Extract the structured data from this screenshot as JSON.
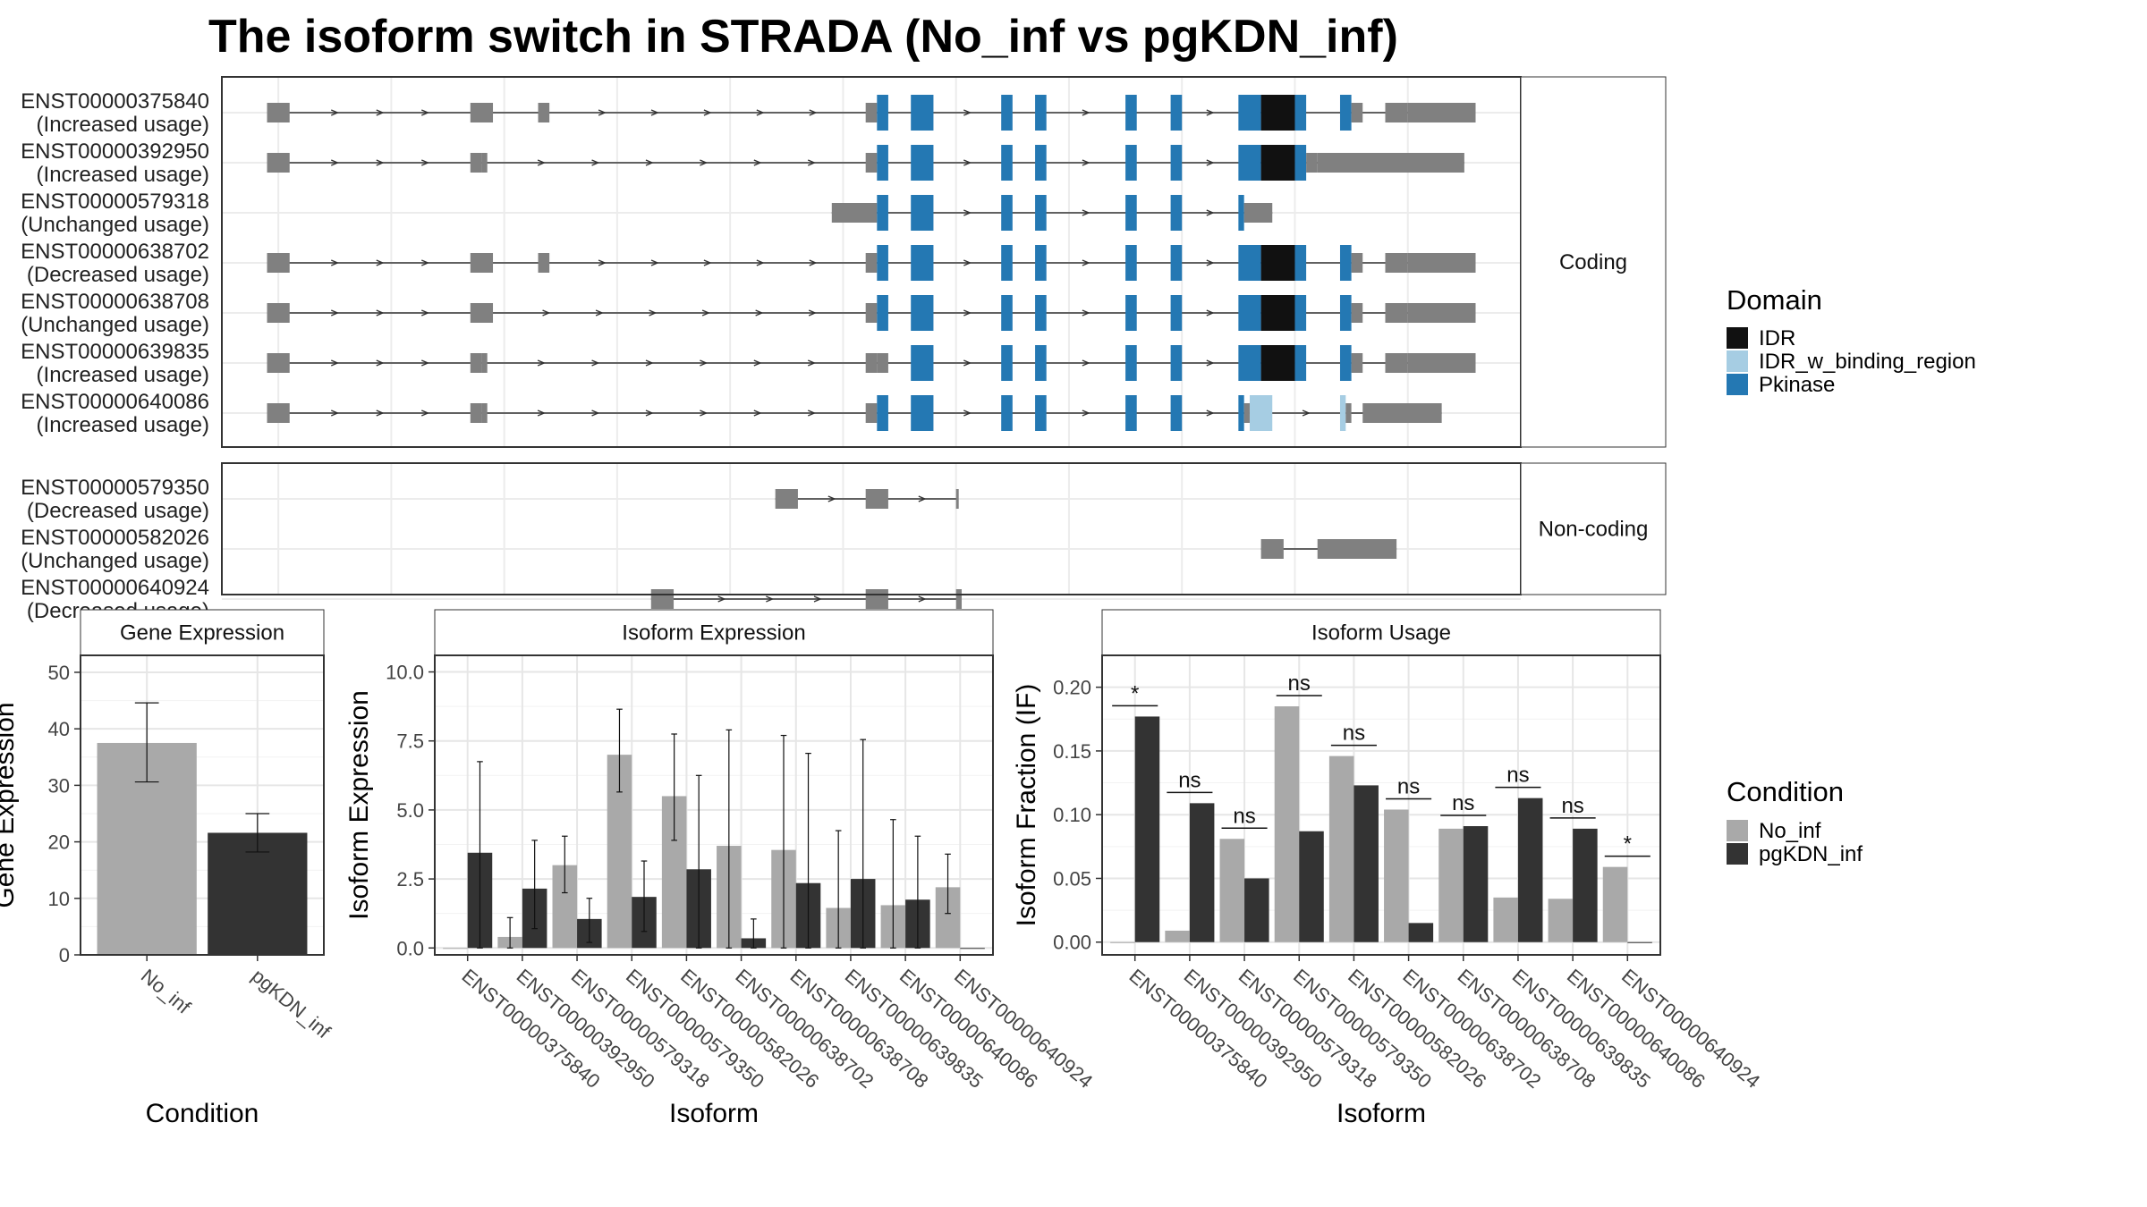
{
  "title": "The isoform switch in STRADA (No_inf vs pgKDN_inf)",
  "colors": {
    "No_inf": "#a9a9a9",
    "pgKDN_inf": "#333333",
    "utr": "#808080",
    "IDR": "#111111",
    "IDR_w_binding_region": "#a6cde3",
    "Pkinase": "#2478b3"
  },
  "structure": {
    "facets": [
      {
        "label": "Coding",
        "isoforms": [
          {
            "id": "ENST00000375840",
            "usage": "(Increased usage)",
            "span": [
              0.04,
              0.94
            ],
            "exons": [
              [
                0.04,
                0.06,
                "u"
              ],
              [
                0.22,
                0.24,
                "u"
              ],
              [
                0.28,
                0.29,
                "u"
              ],
              [
                0.57,
                0.58,
                "u"
              ],
              [
                0.58,
                0.59,
                "p"
              ],
              [
                0.61,
                0.63,
                "p"
              ],
              [
                0.69,
                0.7,
                "p"
              ],
              [
                0.72,
                0.73,
                "p"
              ],
              [
                0.8,
                0.81,
                "p"
              ],
              [
                0.84,
                0.85,
                "p"
              ],
              [
                0.9,
                0.92,
                "p"
              ],
              [
                0.92,
                0.95,
                "i"
              ],
              [
                0.95,
                0.96,
                "p"
              ],
              [
                0.99,
                1.0,
                "p"
              ],
              [
                1.0,
                1.01,
                "u"
              ],
              [
                1.03,
                1.05,
                "u"
              ],
              [
                1.05,
                1.11,
                "u"
              ]
            ]
          },
          {
            "id": "ENST00000392950",
            "usage": "(Increased usage)",
            "span": [
              0.04,
              0.96
            ],
            "exons": [
              [
                0.04,
                0.06,
                "u"
              ],
              [
                0.22,
                0.23,
                "u"
              ],
              [
                0.23,
                0.235,
                "u"
              ],
              [
                0.57,
                0.58,
                "u"
              ],
              [
                0.58,
                0.59,
                "p"
              ],
              [
                0.61,
                0.63,
                "p"
              ],
              [
                0.69,
                0.7,
                "p"
              ],
              [
                0.72,
                0.73,
                "p"
              ],
              [
                0.8,
                0.81,
                "p"
              ],
              [
                0.84,
                0.85,
                "p"
              ],
              [
                0.9,
                0.92,
                "p"
              ],
              [
                0.92,
                0.95,
                "i"
              ],
              [
                0.95,
                0.96,
                "p"
              ],
              [
                0.96,
                0.97,
                "u"
              ],
              [
                0.97,
                1.1,
                "u"
              ]
            ]
          },
          {
            "id": "ENST00000579318",
            "usage": "(Unchanged usage)",
            "span": [
              0.58,
              0.93
            ],
            "exons": [
              [
                0.54,
                0.58,
                "u"
              ],
              [
                0.58,
                0.59,
                "p"
              ],
              [
                0.61,
                0.63,
                "p"
              ],
              [
                0.69,
                0.7,
                "p"
              ],
              [
                0.72,
                0.73,
                "p"
              ],
              [
                0.8,
                0.81,
                "p"
              ],
              [
                0.84,
                0.85,
                "p"
              ],
              [
                0.9,
                0.905,
                "p"
              ],
              [
                0.905,
                0.93,
                "u"
              ]
            ]
          },
          {
            "id": "ENST00000638702",
            "usage": "(Decreased usage)",
            "span": [
              0.04,
              0.94
            ],
            "exons": [
              [
                0.04,
                0.06,
                "u"
              ],
              [
                0.22,
                0.24,
                "u"
              ],
              [
                0.28,
                0.29,
                "u"
              ],
              [
                0.57,
                0.58,
                "u"
              ],
              [
                0.58,
                0.59,
                "p"
              ],
              [
                0.61,
                0.63,
                "p"
              ],
              [
                0.69,
                0.7,
                "p"
              ],
              [
                0.72,
                0.73,
                "p"
              ],
              [
                0.8,
                0.81,
                "p"
              ],
              [
                0.84,
                0.85,
                "p"
              ],
              [
                0.9,
                0.92,
                "p"
              ],
              [
                0.92,
                0.95,
                "i"
              ],
              [
                0.95,
                0.96,
                "p"
              ],
              [
                0.99,
                1.0,
                "p"
              ],
              [
                1.0,
                1.01,
                "u"
              ],
              [
                1.03,
                1.05,
                "u"
              ],
              [
                1.05,
                1.11,
                "u"
              ]
            ]
          },
          {
            "id": "ENST00000638708",
            "usage": "(Unchanged usage)",
            "span": [
              0.04,
              0.94
            ],
            "exons": [
              [
                0.04,
                0.06,
                "u"
              ],
              [
                0.22,
                0.24,
                "u"
              ],
              [
                0.57,
                0.58,
                "u"
              ],
              [
                0.58,
                0.59,
                "p"
              ],
              [
                0.61,
                0.63,
                "p"
              ],
              [
                0.69,
                0.7,
                "p"
              ],
              [
                0.72,
                0.73,
                "p"
              ],
              [
                0.8,
                0.81,
                "p"
              ],
              [
                0.84,
                0.85,
                "p"
              ],
              [
                0.9,
                0.92,
                "p"
              ],
              [
                0.92,
                0.95,
                "i"
              ],
              [
                0.95,
                0.96,
                "p"
              ],
              [
                0.99,
                1.0,
                "p"
              ],
              [
                1.0,
                1.01,
                "u"
              ],
              [
                1.03,
                1.05,
                "u"
              ],
              [
                1.05,
                1.11,
                "u"
              ]
            ]
          },
          {
            "id": "ENST00000639835",
            "usage": "(Increased usage)",
            "span": [
              0.04,
              0.94
            ],
            "exons": [
              [
                0.04,
                0.06,
                "u"
              ],
              [
                0.22,
                0.23,
                "u"
              ],
              [
                0.23,
                0.235,
                "u"
              ],
              [
                0.57,
                0.58,
                "u"
              ],
              [
                0.58,
                0.59,
                "u"
              ],
              [
                0.61,
                0.63,
                "p"
              ],
              [
                0.69,
                0.7,
                "p"
              ],
              [
                0.72,
                0.73,
                "p"
              ],
              [
                0.8,
                0.81,
                "p"
              ],
              [
                0.84,
                0.85,
                "p"
              ],
              [
                0.9,
                0.92,
                "p"
              ],
              [
                0.92,
                0.95,
                "i"
              ],
              [
                0.95,
                0.96,
                "p"
              ],
              [
                0.99,
                1.0,
                "p"
              ],
              [
                1.0,
                1.01,
                "u"
              ],
              [
                1.03,
                1.05,
                "u"
              ],
              [
                1.05,
                1.11,
                "u"
              ]
            ]
          },
          {
            "id": "ENST00000640086",
            "usage": "(Increased usage)",
            "span": [
              0.04,
              0.94
            ],
            "exons": [
              [
                0.04,
                0.06,
                "u"
              ],
              [
                0.22,
                0.23,
                "u"
              ],
              [
                0.23,
                0.235,
                "u"
              ],
              [
                0.57,
                0.58,
                "u"
              ],
              [
                0.58,
                0.59,
                "p"
              ],
              [
                0.61,
                0.63,
                "p"
              ],
              [
                0.69,
                0.7,
                "p"
              ],
              [
                0.72,
                0.73,
                "p"
              ],
              [
                0.8,
                0.81,
                "p"
              ],
              [
                0.84,
                0.85,
                "p"
              ],
              [
                0.9,
                0.905,
                "p"
              ],
              [
                0.905,
                0.91,
                "u"
              ],
              [
                0.91,
                0.93,
                "b"
              ],
              [
                0.99,
                0.995,
                "b"
              ],
              [
                0.995,
                1.0,
                "u"
              ],
              [
                1.01,
                1.08,
                "u"
              ]
            ]
          }
        ]
      },
      {
        "label": "Non-coding",
        "isoforms": [
          {
            "id": "ENST00000579350",
            "usage": "(Decreased usage)",
            "span": [
              0.49,
              0.65
            ],
            "exons": [
              [
                0.49,
                0.51,
                "u"
              ],
              [
                0.57,
                0.59,
                "u"
              ],
              [
                0.65,
                0.652,
                "u"
              ]
            ]
          },
          {
            "id": "ENST00000582026",
            "usage": "(Unchanged usage)",
            "span": [
              0.92,
              1.04
            ],
            "exons": [
              [
                0.92,
                0.94,
                "u"
              ],
              [
                0.97,
                1.04,
                "u"
              ]
            ]
          },
          {
            "id": "ENST00000640924",
            "usage": "(Decreased usage)",
            "span": [
              0.38,
              0.65
            ],
            "exons": [
              [
                0.38,
                0.4,
                "u"
              ],
              [
                0.57,
                0.59,
                "u"
              ],
              [
                0.65,
                0.655,
                "u"
              ]
            ]
          }
        ]
      }
    ]
  },
  "legend_domain": {
    "title": "Domain",
    "items": [
      {
        "label": "IDR",
        "key": "IDR"
      },
      {
        "label": "IDR_w_binding_region",
        "key": "IDR_w_binding_region"
      },
      {
        "label": "Pkinase",
        "key": "Pkinase"
      }
    ]
  },
  "legend_condition": {
    "title": "Condition",
    "items": [
      {
        "label": "No_inf",
        "key": "No_inf"
      },
      {
        "label": "pgKDN_inf",
        "key": "pgKDN_inf"
      }
    ]
  },
  "chart_data": [
    {
      "type": "bar",
      "title": "Gene Expression",
      "xlabel": "Condition",
      "ylabel": "Gene Expression",
      "ylim": [
        0,
        53
      ],
      "yticks": [
        0,
        10,
        20,
        30,
        40,
        50
      ],
      "categories": [
        "No_inf",
        "pgKDN_inf"
      ],
      "values": [
        37.5,
        21.6
      ],
      "errors": [
        [
          30.6,
          44.6
        ],
        [
          18.2,
          25.0
        ]
      ]
    },
    {
      "type": "bar",
      "title": "Isoform Expression",
      "xlabel": "Isoform",
      "ylabel": "Isoform Expression",
      "ylim": [
        -0.25,
        10.6
      ],
      "yticks": [
        0.0,
        2.5,
        5.0,
        7.5,
        10.0
      ],
      "ytick_labels": [
        "0.0",
        "2.5",
        "5.0",
        "7.5",
        "10.0"
      ],
      "categories": [
        "ENST00000375840",
        "ENST00000392950",
        "ENST00000579318",
        "ENST00000579350",
        "ENST00000582026",
        "ENST00000638702",
        "ENST00000638708",
        "ENST00000639835",
        "ENST00000640086",
        "ENST00000640924"
      ],
      "series": [
        {
          "name": "No_inf",
          "values": [
            0.0,
            0.4,
            3.0,
            7.0,
            5.5,
            3.7,
            3.55,
            1.45,
            1.55,
            2.2
          ],
          "errors": [
            [
              0,
              0
            ],
            [
              0.0,
              1.1
            ],
            [
              2.0,
              4.05
            ],
            [
              5.65,
              8.65
            ],
            [
              3.9,
              7.75
            ],
            [
              0.0,
              7.9
            ],
            [
              0.0,
              7.7
            ],
            [
              0.0,
              4.25
            ],
            [
              0.0,
              4.65
            ],
            [
              1.25,
              3.4
            ]
          ]
        },
        {
          "name": "pgKDN_inf",
          "values": [
            3.45,
            2.15,
            1.05,
            1.85,
            2.85,
            0.35,
            2.35,
            2.5,
            1.75,
            0.0
          ],
          "errors": [
            [
              0.0,
              6.75
            ],
            [
              0.7,
              3.9
            ],
            [
              0.2,
              1.8
            ],
            [
              0.6,
              3.15
            ],
            [
              0.0,
              6.25
            ],
            [
              0.0,
              1.05
            ],
            [
              0.0,
              7.05
            ],
            [
              0.0,
              7.55
            ],
            [
              0.0,
              4.05
            ],
            [
              0,
              0
            ]
          ]
        }
      ]
    },
    {
      "type": "bar",
      "title": "Isoform Usage",
      "xlabel": "Isoform",
      "ylabel": "Isoform Fraction (IF)",
      "ylim": [
        -0.01,
        0.225
      ],
      "yticks": [
        0.0,
        0.05,
        0.1,
        0.15,
        0.2
      ],
      "ytick_labels": [
        "0.00",
        "0.05",
        "0.10",
        "0.15",
        "0.20"
      ],
      "categories": [
        "ENST00000375840",
        "ENST00000392950",
        "ENST00000579318",
        "ENST00000579350",
        "ENST00000582026",
        "ENST00000638702",
        "ENST00000638708",
        "ENST00000639835",
        "ENST00000640086",
        "ENST00000640924"
      ],
      "series": [
        {
          "name": "No_inf",
          "values": [
            0.0,
            0.009,
            0.081,
            0.185,
            0.146,
            0.104,
            0.089,
            0.035,
            0.034,
            0.059
          ]
        },
        {
          "name": "pgKDN_inf",
          "values": [
            0.177,
            0.109,
            0.05,
            0.087,
            0.123,
            0.015,
            0.091,
            0.113,
            0.089,
            0.0
          ]
        }
      ],
      "significance": [
        "*",
        "ns",
        "ns",
        "ns",
        "ns",
        "ns",
        "ns",
        "ns",
        "ns",
        "*"
      ]
    }
  ]
}
